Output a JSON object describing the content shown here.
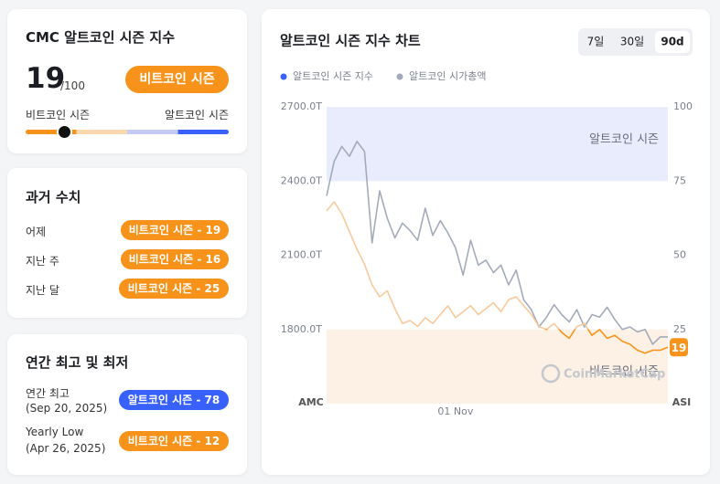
{
  "index_card": {
    "title": "CMC 알트코인 시즌 지수",
    "value": 19,
    "out_of": "/100",
    "range": [
      0,
      100
    ],
    "badge": "비트코인 시즌",
    "left_label": "비트코인 시즌",
    "right_label": "알트코인 시즌"
  },
  "history": {
    "title": "과거 수치",
    "rows": [
      [
        "어제",
        "비트코인 시즌 - 19"
      ],
      [
        "지난 주",
        "비트코인 시즌 - 16"
      ],
      [
        "지난 달",
        "비트코인 시즌 - 25"
      ]
    ]
  },
  "extremes": {
    "title": "연간 최고 및 최저",
    "rows": [
      [
        "연간 최고",
        "(Sep 20, 2025)",
        "알트코인 시즌 - 78"
      ],
      [
        "Yearly Low",
        "(Apr 26, 2025)",
        "비트코인 시즌 - 12"
      ]
    ]
  },
  "chart_data": {
    "type": "line",
    "title": "알트코인 시즌 지수 차트",
    "range_buttons": [
      "7일",
      "30일",
      "90d"
    ],
    "selected_range": 2,
    "y_label": "AMC",
    "y2_label": "ASI",
    "watermark": "CoinMarketCap",
    "grid": false,
    "categories": [
      null,
      null,
      null,
      null,
      null,
      null,
      null,
      null,
      null,
      null,
      null,
      null,
      null,
      null,
      null,
      null,
      null,
      "01 Nov",
      null,
      null,
      null,
      null,
      null,
      null,
      null,
      null,
      null,
      null,
      null,
      null,
      null,
      null,
      null,
      null,
      null,
      null,
      null,
      null,
      null,
      null,
      null,
      null,
      null,
      null,
      null,
      null
    ],
    "ylim": [
      1500,
      2700
    ],
    "yticks": [
      {
        "value": 1800,
        "label": "1800.0T"
      },
      {
        "value": 2100,
        "label": "2100.0T"
      },
      {
        "value": 2400,
        "label": "2400.0T"
      },
      {
        "value": 2700,
        "label": "2700.0T"
      }
    ],
    "y2lim": [
      0,
      100
    ],
    "y2ticks": [
      25,
      50,
      75,
      100
    ],
    "zones": [
      {
        "from": 0,
        "to": 25,
        "color": "#fdf0e4",
        "label": "비트코인 시즌"
      },
      {
        "from": 75,
        "to": 100,
        "color": "#e8ecfd",
        "label": "알트코인 시즌"
      }
    ],
    "series": [
      {
        "name": "알트코인 시즌 지수",
        "color": "#3861fb",
        "line_colors": [
          "#f7931a",
          "#f9c99b"
        ],
        "axis": "y2",
        "values": [
          65,
          68,
          64,
          58,
          52,
          47,
          40,
          36,
          38,
          32,
          27,
          28,
          26,
          29,
          27,
          30,
          33,
          29,
          31,
          33,
          30,
          32,
          34,
          31,
          35,
          36,
          33,
          30,
          26,
          25,
          27,
          24,
          22,
          26,
          27,
          23,
          25,
          22,
          23,
          21,
          20,
          18,
          17,
          18,
          18,
          19
        ]
      },
      {
        "name": "알트코인 시가총액",
        "color": "#a3abbb",
        "values": [
          2340,
          2480,
          2540,
          2500,
          2560,
          2520,
          2150,
          2360,
          2250,
          2170,
          2230,
          2200,
          2160,
          2290,
          2180,
          2240,
          2190,
          2130,
          2020,
          2160,
          2060,
          2080,
          2030,
          2060,
          1980,
          2040,
          1920,
          1880,
          1810,
          1850,
          1900,
          1860,
          1830,
          1880,
          1810,
          1860,
          1850,
          1890,
          1840,
          1800,
          1810,
          1790,
          1800,
          1740,
          1770,
          1770
        ]
      }
    ]
  }
}
